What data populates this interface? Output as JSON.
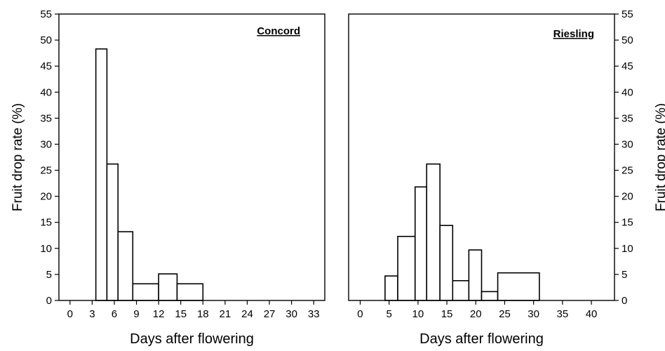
{
  "chart_data": [
    {
      "type": "bar",
      "title": "Concord",
      "xlabel": "Days after flowering",
      "ylabel": "Fruit drop rate (%)",
      "xlim": [
        -1.5,
        34.5
      ],
      "ylim": [
        0,
        55
      ],
      "xticks": [
        0,
        3,
        6,
        9,
        12,
        15,
        18,
        21,
        24,
        27,
        30,
        33
      ],
      "yticks": [
        0,
        5,
        10,
        15,
        20,
        25,
        30,
        35,
        40,
        45,
        50,
        55
      ],
      "bars": [
        {
          "x_start": 3.5,
          "x_end": 5.0,
          "value": 48.3
        },
        {
          "x_start": 5.0,
          "x_end": 6.5,
          "value": 26.2
        },
        {
          "x_start": 6.5,
          "x_end": 8.5,
          "value": 13.2
        },
        {
          "x_start": 8.5,
          "x_end": 12.0,
          "value": 3.2
        },
        {
          "x_start": 12.0,
          "x_end": 14.5,
          "value": 5.1
        },
        {
          "x_start": 14.5,
          "x_end": 18.0,
          "value": 3.2
        }
      ]
    },
    {
      "type": "bar",
      "title": "Riesling",
      "xlabel": "Days after flowering",
      "ylabel": "Fruit drop rate (%)",
      "xlim": [
        -2,
        44
      ],
      "ylim": [
        0,
        55
      ],
      "xticks": [
        0,
        5,
        10,
        15,
        20,
        25,
        30,
        35,
        40
      ],
      "yticks": [
        0,
        5,
        10,
        15,
        20,
        25,
        30,
        35,
        40,
        45,
        50,
        55
      ],
      "bars": [
        {
          "x_start": 4.3,
          "x_end": 6.5,
          "value": 4.7
        },
        {
          "x_start": 6.5,
          "x_end": 9.5,
          "value": 12.3
        },
        {
          "x_start": 9.5,
          "x_end": 11.5,
          "value": 21.8
        },
        {
          "x_start": 11.5,
          "x_end": 13.8,
          "value": 26.2
        },
        {
          "x_start": 13.8,
          "x_end": 16.0,
          "value": 14.4
        },
        {
          "x_start": 16.0,
          "x_end": 18.8,
          "value": 3.8
        },
        {
          "x_start": 18.8,
          "x_end": 21.0,
          "value": 9.7
        },
        {
          "x_start": 21.0,
          "x_end": 23.8,
          "value": 1.7
        },
        {
          "x_start": 23.8,
          "x_end": 31.0,
          "value": 5.3
        }
      ]
    }
  ]
}
